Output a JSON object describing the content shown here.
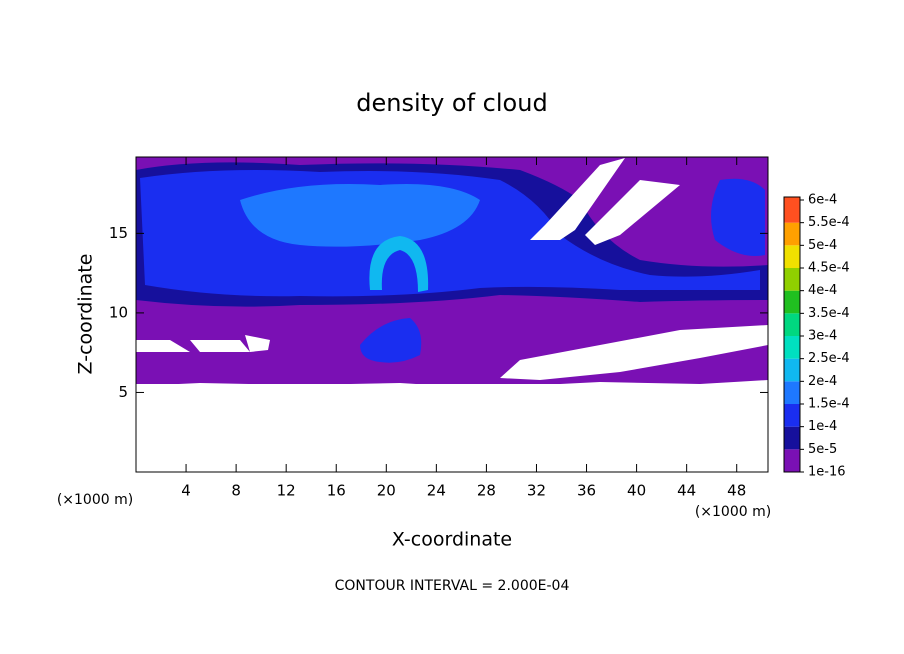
{
  "chart_data": {
    "type": "contour",
    "title": "density of cloud",
    "xlabel": "X-coordinate",
    "ylabel": "Z-coordinate",
    "unit_label": "(×1000 m)",
    "footer": "CONTOUR INTERVAL = 2.000E-04",
    "xlim": [
      0,
      50.5
    ],
    "ylim": [
      0,
      19.8
    ],
    "xticks": [
      4,
      8,
      12,
      16,
      20,
      24,
      28,
      32,
      36,
      40,
      44,
      48
    ],
    "yticks": [
      5,
      10,
      15
    ],
    "colorbar": {
      "levels": [
        {
          "value": 1e-16,
          "label": "1e-16"
        },
        {
          "value": 5e-05,
          "label": "5e-5"
        },
        {
          "value": 0.0001,
          "label": "1e-4"
        },
        {
          "value": 0.00015,
          "label": "1.5e-4"
        },
        {
          "value": 0.0002,
          "label": "2e-4"
        },
        {
          "value": 0.00025,
          "label": "2.5e-4"
        },
        {
          "value": 0.0003,
          "label": "3e-4"
        },
        {
          "value": 0.00035,
          "label": "3.5e-4"
        },
        {
          "value": 0.0004,
          "label": "4e-4"
        },
        {
          "value": 0.00045,
          "label": "4.5e-4"
        },
        {
          "value": 0.0005,
          "label": "5e-4"
        },
        {
          "value": 0.00055,
          "label": "5.5e-4"
        },
        {
          "value": 0.0006,
          "label": "6e-4"
        }
      ],
      "colors": [
        "#7a10b4",
        "#16109c",
        "#1a2ef0",
        "#1e78ff",
        "#10b8f0",
        "#00e0c0",
        "#00d880",
        "#20c020",
        "#90d000",
        "#f0e000",
        "#ffa000",
        "#ff5020",
        "#f08080"
      ]
    }
  }
}
